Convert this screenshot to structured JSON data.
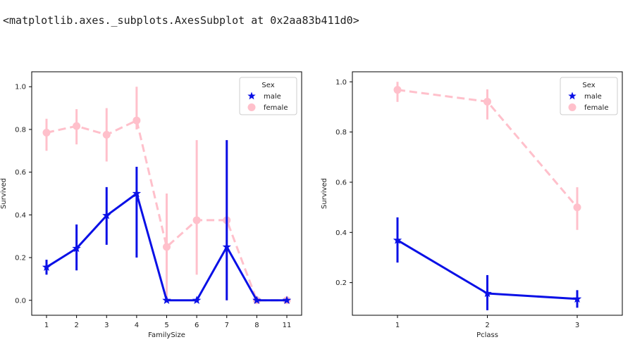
{
  "output_text": "<matplotlib.axes._subplots.AxesSubplot at 0x2aa83b411d0>",
  "colors": {
    "male": "#0a10e6",
    "female": "#ffc0cb"
  },
  "chart_data": [
    {
      "type": "line",
      "xlabel": "FamilySize",
      "ylabel": "Survived",
      "categories": [
        "1",
        "2",
        "3",
        "4",
        "5",
        "6",
        "7",
        "8",
        "11"
      ],
      "yticks": [
        "0.0",
        "0.2",
        "0.4",
        "0.6",
        "0.8",
        "1.0"
      ],
      "ylim": [
        -0.07,
        1.07
      ],
      "legend": {
        "title": "Sex",
        "placement": "top-right"
      },
      "series": [
        {
          "name": "male",
          "marker": "star",
          "linestyle": "solid",
          "values": [
            0.155,
            0.243,
            0.397,
            0.5,
            0.0,
            0.0,
            0.25,
            0.0,
            0.0
          ],
          "ci_low": [
            0.12,
            0.14,
            0.26,
            0.2,
            0.0,
            0.0,
            0.0,
            0.0,
            0.0
          ],
          "ci_high": [
            0.19,
            0.355,
            0.53,
            0.625,
            0.0,
            0.0,
            0.75,
            0.0,
            0.0
          ]
        },
        {
          "name": "female",
          "marker": "circle",
          "linestyle": "dashed",
          "values": [
            0.785,
            0.816,
            0.775,
            0.842,
            0.25,
            0.375,
            0.375,
            0.0,
            0.0
          ],
          "ci_low": [
            0.7,
            0.73,
            0.65,
            0.8,
            0.0,
            0.12,
            0.0,
            0.0,
            0.0
          ],
          "ci_high": [
            0.85,
            0.895,
            0.9,
            1.0,
            0.5,
            0.75,
            0.75,
            0.0,
            0.0
          ]
        }
      ]
    },
    {
      "type": "line",
      "xlabel": "Pclass",
      "ylabel": "Survived",
      "categories": [
        "1",
        "2",
        "3"
      ],
      "yticks": [
        "0.2",
        "0.4",
        "0.6",
        "0.8",
        "1.0"
      ],
      "ylim": [
        0.07,
        1.04
      ],
      "legend": {
        "title": "Sex",
        "placement": "top-right"
      },
      "series": [
        {
          "name": "male",
          "marker": "star",
          "linestyle": "solid",
          "values": [
            0.369,
            0.157,
            0.135
          ],
          "ci_low": [
            0.28,
            0.09,
            0.1
          ],
          "ci_high": [
            0.46,
            0.23,
            0.17
          ]
        },
        {
          "name": "female",
          "marker": "circle",
          "linestyle": "dashed",
          "values": [
            0.968,
            0.921,
            0.5
          ],
          "ci_low": [
            0.92,
            0.85,
            0.41
          ],
          "ci_high": [
            1.0,
            0.97,
            0.58
          ]
        }
      ]
    }
  ]
}
